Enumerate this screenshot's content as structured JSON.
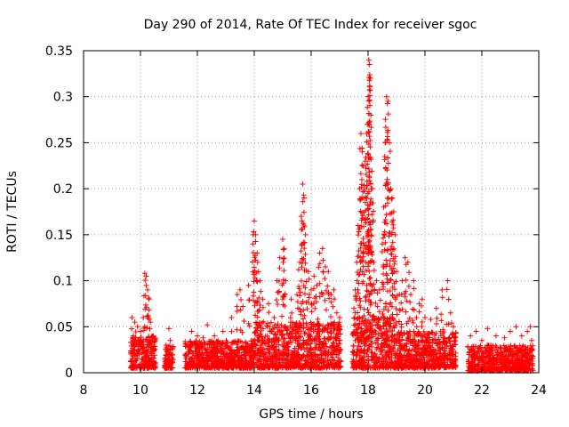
{
  "chart_data": {
    "type": "scatter",
    "title": "Day 290 of 2014, Rate Of TEC Index for receiver sgoc",
    "xlabel": "GPS time / hours",
    "ylabel": "ROTI / TECUs",
    "xlim": [
      8,
      24
    ],
    "ylim": [
      0,
      0.35
    ],
    "x_ticks": [
      8,
      10,
      12,
      14,
      16,
      18,
      20,
      22,
      24
    ],
    "x_tick_labels": [
      "8",
      "10",
      "12",
      "14",
      "16",
      "18",
      "20",
      "22",
      "24"
    ],
    "y_ticks": [
      0,
      0.05,
      0.1,
      0.15,
      0.2,
      0.25,
      0.3,
      0.35
    ],
    "y_tick_labels": [
      "0",
      "0.05",
      "0.1",
      "0.15",
      "0.2",
      "0.25",
      "0.3",
      "0.35"
    ],
    "grid": true,
    "marker": "+",
    "color": "#ff0000",
    "series": [
      {
        "name": "ROTI",
        "points": [
          [
            9.7,
            0.06
          ],
          [
            9.75,
            0.04
          ],
          [
            9.8,
            0.055
          ],
          [
            9.85,
            0.03
          ],
          [
            9.9,
            0.05
          ],
          [
            9.95,
            0.02
          ],
          [
            10.0,
            0.045
          ],
          [
            10.1,
            0.06
          ],
          [
            10.15,
            0.108
          ],
          [
            10.2,
            0.105
          ],
          [
            10.25,
            0.09
          ],
          [
            10.3,
            0.08
          ],
          [
            10.35,
            0.055
          ],
          [
            10.4,
            0.03
          ],
          [
            10.45,
            0.04
          ],
          [
            10.9,
            0.03
          ],
          [
            11.0,
            0.048
          ],
          [
            11.05,
            0.035
          ],
          [
            11.1,
            0.02
          ],
          [
            11.6,
            0.03
          ],
          [
            11.8,
            0.045
          ],
          [
            12.0,
            0.04
          ],
          [
            12.2,
            0.038
          ],
          [
            12.35,
            0.052
          ],
          [
            12.6,
            0.04
          ],
          [
            12.9,
            0.045
          ],
          [
            13.2,
            0.06
          ],
          [
            13.4,
            0.085
          ],
          [
            13.5,
            0.09
          ],
          [
            13.6,
            0.072
          ],
          [
            13.8,
            0.095
          ],
          [
            13.95,
            0.14
          ],
          [
            14.0,
            0.165
          ],
          [
            14.05,
            0.15
          ],
          [
            14.1,
            0.13
          ],
          [
            14.15,
            0.11
          ],
          [
            14.2,
            0.1
          ],
          [
            14.3,
            0.08
          ],
          [
            14.5,
            0.075
          ],
          [
            14.7,
            0.06
          ],
          [
            14.8,
            0.1
          ],
          [
            14.9,
            0.125
          ],
          [
            15.0,
            0.145
          ],
          [
            15.05,
            0.135
          ],
          [
            15.1,
            0.1
          ],
          [
            15.3,
            0.08
          ],
          [
            15.5,
            0.085
          ],
          [
            15.6,
            0.12
          ],
          [
            15.65,
            0.17
          ],
          [
            15.7,
            0.205
          ],
          [
            15.75,
            0.19
          ],
          [
            15.8,
            0.15
          ],
          [
            15.9,
            0.11
          ],
          [
            16.0,
            0.09
          ],
          [
            16.1,
            0.105
          ],
          [
            16.2,
            0.095
          ],
          [
            16.3,
            0.13
          ],
          [
            16.4,
            0.135
          ],
          [
            16.5,
            0.115
          ],
          [
            16.6,
            0.11
          ],
          [
            16.7,
            0.085
          ],
          [
            16.8,
            0.09
          ],
          [
            16.9,
            0.065
          ],
          [
            17.0,
            0.06
          ],
          [
            17.5,
            0.07
          ],
          [
            17.55,
            0.09
          ],
          [
            17.6,
            0.12
          ],
          [
            17.65,
            0.16
          ],
          [
            17.7,
            0.2
          ],
          [
            17.75,
            0.26
          ],
          [
            17.8,
            0.24
          ],
          [
            17.85,
            0.19
          ],
          [
            17.9,
            0.23
          ],
          [
            17.95,
            0.26
          ],
          [
            18.0,
            0.3
          ],
          [
            18.03,
            0.34
          ],
          [
            18.05,
            0.335
          ],
          [
            18.08,
            0.32
          ],
          [
            18.1,
            0.28
          ],
          [
            18.15,
            0.2
          ],
          [
            18.2,
            0.12
          ],
          [
            18.3,
            0.1
          ],
          [
            18.4,
            0.09
          ],
          [
            18.5,
            0.14
          ],
          [
            18.55,
            0.18
          ],
          [
            18.6,
            0.25
          ],
          [
            18.65,
            0.3
          ],
          [
            18.7,
            0.295
          ],
          [
            18.75,
            0.25
          ],
          [
            18.8,
            0.2
          ],
          [
            18.85,
            0.19
          ],
          [
            18.9,
            0.175
          ],
          [
            18.95,
            0.15
          ],
          [
            19.0,
            0.11
          ],
          [
            19.1,
            0.085
          ],
          [
            19.2,
            0.1
          ],
          [
            19.3,
            0.125
          ],
          [
            19.4,
            0.12
          ],
          [
            19.5,
            0.085
          ],
          [
            19.6,
            0.1
          ],
          [
            19.7,
            0.06
          ],
          [
            19.8,
            0.075
          ],
          [
            19.9,
            0.08
          ],
          [
            20.0,
            0.06
          ],
          [
            20.2,
            0.058
          ],
          [
            20.4,
            0.07
          ],
          [
            20.6,
            0.09
          ],
          [
            20.8,
            0.1
          ],
          [
            20.9,
            0.065
          ],
          [
            21.0,
            0.05
          ],
          [
            21.6,
            0.04
          ],
          [
            21.8,
            0.045
          ],
          [
            22.0,
            0.035
          ],
          [
            22.2,
            0.048
          ],
          [
            22.5,
            0.04
          ],
          [
            22.8,
            0.038
          ],
          [
            23.0,
            0.045
          ],
          [
            23.2,
            0.05
          ],
          [
            23.4,
            0.04
          ],
          [
            23.6,
            0.045
          ],
          [
            23.7,
            0.05
          ],
          [
            23.75,
            0.035
          ]
        ]
      }
    ],
    "dense_bands": [
      {
        "start": 9.65,
        "end": 10.55,
        "low": 0.005,
        "high": 0.04
      },
      {
        "start": 10.85,
        "end": 11.15,
        "low": 0.005,
        "high": 0.03
      },
      {
        "start": 11.55,
        "end": 14.0,
        "low": 0.005,
        "high": 0.035
      },
      {
        "start": 14.0,
        "end": 17.05,
        "low": 0.005,
        "high": 0.055
      },
      {
        "start": 17.45,
        "end": 19.0,
        "low": 0.005,
        "high": 0.06
      },
      {
        "start": 19.0,
        "end": 21.1,
        "low": 0.005,
        "high": 0.045
      },
      {
        "start": 21.5,
        "end": 23.8,
        "low": 0.002,
        "high": 0.03
      }
    ]
  }
}
